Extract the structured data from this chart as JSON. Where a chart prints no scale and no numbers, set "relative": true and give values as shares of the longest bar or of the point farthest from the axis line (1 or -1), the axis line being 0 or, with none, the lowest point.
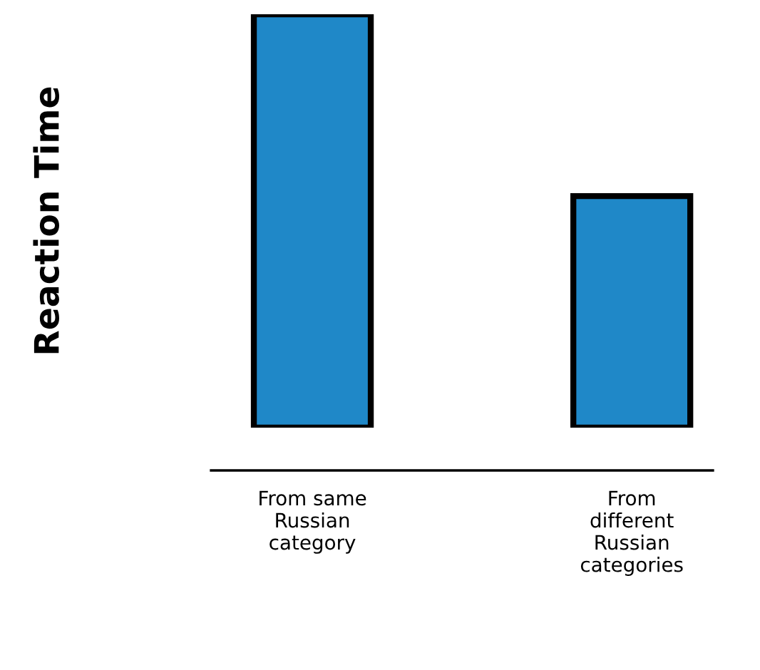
{
  "chart_data": {
    "type": "bar",
    "relative": true,
    "ylabel": "Reaction Time",
    "categories": [
      "From same\nRussian\ncategory",
      "From\ndifferent\nRussian\ncategories"
    ],
    "values": [
      1,
      0.56
    ],
    "color": "#1f88c8",
    "grid": false,
    "legend": false
  }
}
